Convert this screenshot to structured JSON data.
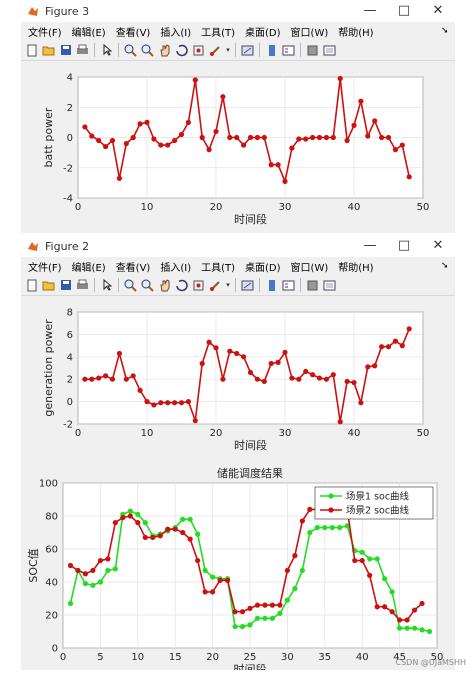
{
  "window1": {
    "title": "Figure 3",
    "menus": [
      "文件(F)",
      "编辑(E)",
      "查看(V)",
      "插入(I)",
      "工具(T)",
      "桌面(D)",
      "窗口(W)",
      "帮助(H)"
    ],
    "controls": {
      "minimize": "—",
      "maximize": "□",
      "close": "✕"
    }
  },
  "window2": {
    "title": "Figure 2",
    "menus": [
      "文件(F)",
      "编辑(E)",
      "查看(V)",
      "插入(I)",
      "工具(T)",
      "桌面(D)",
      "窗口(W)",
      "帮助(H)"
    ],
    "controls": {
      "minimize": "—",
      "maximize": "□",
      "close": "✕"
    }
  },
  "toolbar_icons": [
    "new-file-icon",
    "open-folder-icon",
    "save-icon",
    "print-icon",
    "pointer-icon",
    "zoom-in-icon",
    "zoom-out-icon",
    "pan-hand-icon",
    "rotate-icon",
    "data-cursor-icon",
    "brush-icon",
    "link-plot-icon",
    "colorbar-icon",
    "legend-icon",
    "hide-plot-tools-icon",
    "show-plot-tools-icon"
  ],
  "watermark": "CSDN @UJaMSHH",
  "chart_data": [
    {
      "type": "line",
      "title": "",
      "xlabel": "时间段",
      "ylabel": "batt power",
      "xlim": [
        0,
        50
      ],
      "ylim": [
        -4,
        4
      ],
      "xticks": [
        0,
        10,
        20,
        30,
        40,
        50
      ],
      "yticks": [
        -4,
        -2,
        0,
        2,
        4
      ],
      "grid": true,
      "color": "#cc1111",
      "x": [
        1,
        2,
        3,
        4,
        5,
        6,
        7,
        8,
        9,
        10,
        11,
        12,
        13,
        14,
        15,
        16,
        17,
        18,
        19,
        20,
        21,
        22,
        23,
        24,
        25,
        26,
        27,
        28,
        29,
        30,
        31,
        32,
        33,
        34,
        35,
        36,
        37,
        38,
        39,
        40,
        41,
        42,
        43,
        44,
        45,
        46,
        47,
        48
      ],
      "values": [
        0.7,
        0.1,
        -0.2,
        -0.6,
        -0.2,
        -2.7,
        -0.4,
        0.0,
        0.9,
        1.0,
        -0.1,
        -0.5,
        -0.5,
        -0.2,
        0.2,
        1.0,
        3.8,
        0.0,
        -0.8,
        0.4,
        2.7,
        0.0,
        0.0,
        -0.5,
        0.0,
        0.0,
        0.0,
        -1.8,
        -1.8,
        -2.9,
        -0.7,
        -0.1,
        -0.1,
        0.0,
        0.0,
        0.0,
        0.0,
        3.9,
        -0.2,
        0.8,
        2.4,
        0.1,
        1.1,
        0.0,
        0.0,
        -0.8,
        -0.5,
        -2.6
      ]
    },
    {
      "type": "line",
      "title": "",
      "xlabel": "时间段",
      "ylabel": "generation power",
      "xlim": [
        0,
        50
      ],
      "ylim": [
        -2,
        8
      ],
      "xticks": [
        0,
        10,
        20,
        30,
        40,
        50
      ],
      "yticks": [
        -2,
        0,
        2,
        4,
        6,
        8
      ],
      "grid": true,
      "color": "#cc1111",
      "x": [
        1,
        2,
        3,
        4,
        5,
        6,
        7,
        8,
        9,
        10,
        11,
        12,
        13,
        14,
        15,
        16,
        17,
        18,
        19,
        20,
        21,
        22,
        23,
        24,
        25,
        26,
        27,
        28,
        29,
        30,
        31,
        32,
        33,
        34,
        35,
        36,
        37,
        38,
        39,
        40,
        41,
        42,
        43,
        44,
        45,
        46,
        47,
        48
      ],
      "values": [
        2.0,
        2.0,
        2.1,
        2.3,
        2.0,
        4.3,
        2.0,
        2.3,
        1.0,
        0.0,
        -0.3,
        -0.1,
        -0.1,
        -0.1,
        -0.1,
        0.0,
        -1.7,
        3.4,
        5.3,
        4.8,
        2.0,
        4.5,
        4.3,
        4.0,
        2.6,
        2.0,
        1.8,
        3.4,
        3.5,
        4.4,
        2.1,
        2.0,
        2.7,
        2.4,
        2.1,
        2.0,
        2.4,
        -1.8,
        1.8,
        1.7,
        -0.1,
        3.1,
        3.2,
        4.9,
        4.9,
        5.4,
        5.0,
        6.5
      ]
    },
    {
      "type": "line",
      "title": "储能调度结果",
      "xlabel": "时间段",
      "ylabel": "SOC值",
      "xlim": [
        0,
        50
      ],
      "ylim": [
        0,
        100
      ],
      "xticks": [
        0,
        5,
        10,
        15,
        20,
        25,
        30,
        35,
        40,
        45,
        50
      ],
      "yticks": [
        0,
        20,
        40,
        60,
        80,
        100
      ],
      "grid": true,
      "legend_position": "top-right",
      "series": [
        {
          "name": "场景1 soc曲线",
          "color": "#22dd22",
          "x": [
            1,
            2,
            3,
            4,
            5,
            6,
            7,
            8,
            9,
            10,
            11,
            12,
            13,
            14,
            15,
            16,
            17,
            18,
            19,
            20,
            21,
            22,
            23,
            24,
            25,
            26,
            27,
            28,
            29,
            30,
            31,
            32,
            33,
            34,
            35,
            36,
            37,
            38,
            39,
            40,
            41,
            42,
            43,
            44,
            45,
            46,
            47,
            48,
            49
          ],
          "values": [
            27,
            47,
            39,
            38,
            40,
            47,
            48,
            81,
            83,
            81,
            76,
            68,
            69,
            71,
            73,
            78,
            78,
            69,
            47,
            43,
            42,
            42,
            13,
            13,
            14,
            18,
            18,
            18,
            21,
            29,
            36,
            47,
            70,
            73,
            73,
            73,
            73,
            74,
            59,
            58,
            54,
            54,
            42,
            34,
            12,
            12,
            12,
            11,
            10
          ]
        },
        {
          "name": "场景2 soc曲线",
          "color": "#cc1111",
          "x": [
            1,
            2,
            3,
            4,
            5,
            6,
            7,
            8,
            9,
            10,
            11,
            12,
            13,
            14,
            15,
            16,
            17,
            18,
            19,
            20,
            21,
            22,
            23,
            24,
            25,
            26,
            27,
            28,
            29,
            30,
            31,
            32,
            33,
            34,
            35,
            36,
            37,
            38,
            39,
            40,
            41,
            42,
            43,
            44,
            45,
            46,
            47,
            48
          ],
          "values": [
            50,
            47,
            45,
            47,
            53,
            54,
            76,
            79,
            80,
            76,
            67,
            67,
            68,
            72,
            72,
            70,
            66,
            53,
            34,
            34,
            41,
            41,
            22,
            22,
            24,
            26,
            26,
            26,
            26,
            47,
            56,
            77,
            84,
            84,
            84,
            84,
            84,
            84,
            53,
            53,
            44,
            25,
            25,
            22,
            17,
            17,
            23,
            27
          ]
        }
      ]
    }
  ]
}
